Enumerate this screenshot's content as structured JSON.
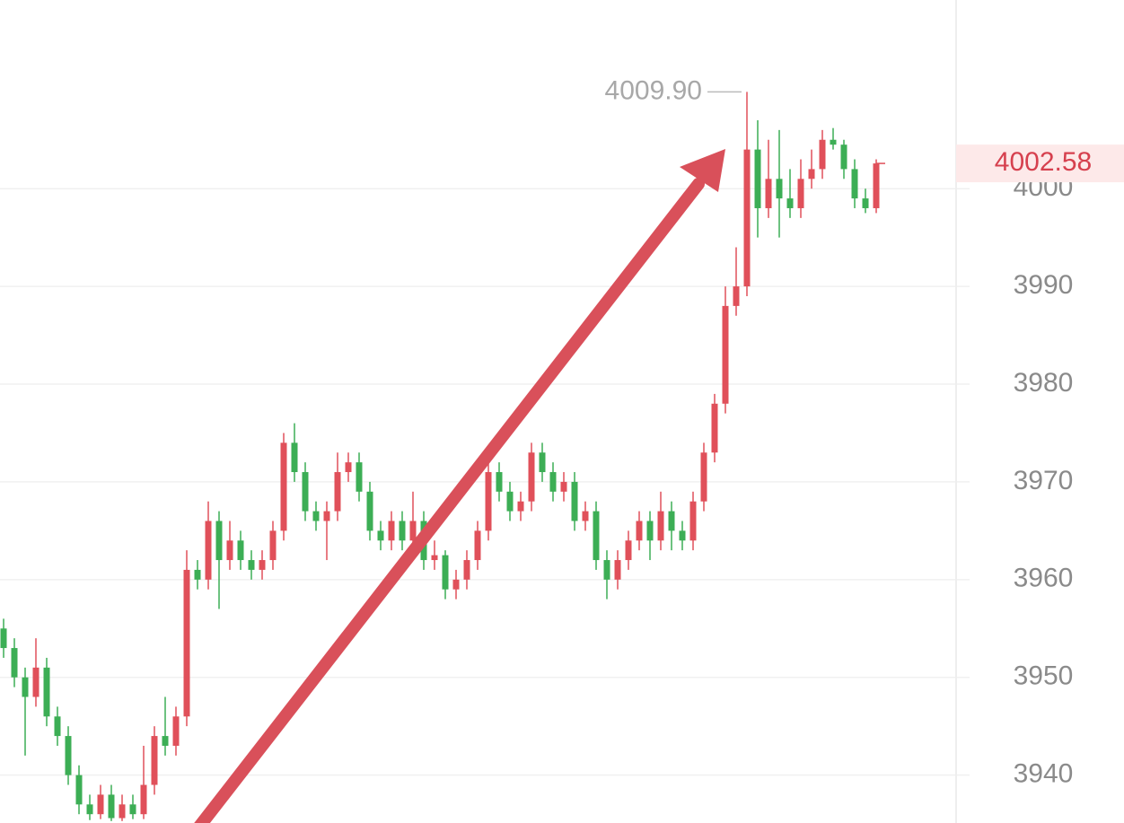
{
  "chart_data": {
    "type": "candlestick",
    "up_color": "#e0505a",
    "down_color": "#3cae55",
    "ylim": [
      3935.1,
      4019.3
    ],
    "yticks": [
      3940,
      3950,
      3960,
      3970,
      3980,
      3990,
      4000
    ],
    "grid": true,
    "open": [
      3955,
      3953,
      3950,
      3948,
      3951,
      3946,
      3944,
      3940,
      3937,
      3936,
      3938,
      3935.6,
      3937,
      3936,
      3939,
      3944,
      3943,
      3946,
      3961,
      3960,
      3966,
      3962,
      3964,
      3962,
      3961,
      3962,
      3965,
      3974,
      3971,
      3967,
      3966,
      3967,
      3971,
      3972,
      3969,
      3965,
      3964,
      3966,
      3964,
      3966,
      3962,
      3962.5,
      3959,
      3960,
      3962,
      3965,
      3971,
      3969,
      3967,
      3968,
      3973,
      3971,
      3969,
      3970,
      3966,
      3967,
      3962,
      3960,
      3962,
      3964,
      3966,
      3964,
      3967,
      3965,
      3964,
      3968,
      3973,
      3978,
      3988,
      3990,
      4004,
      3998,
      4001,
      3999,
      3998,
      4001,
      4002,
      4005,
      4004.5,
      4002,
      3999,
      3998
    ],
    "high": [
      3956,
      3954,
      3951,
      3954,
      3952,
      3947,
      3945,
      3941,
      3938,
      3939,
      3939,
      3938,
      3938,
      3943,
      3945,
      3948,
      3947,
      3963,
      3962,
      3968,
      3967,
      3966,
      3965,
      3963,
      3963,
      3966,
      3975,
      3976,
      3972,
      3968,
      3968,
      3973,
      3973,
      3973,
      3970,
      3966,
      3967,
      3967,
      3969,
      3967,
      3964,
      3963,
      3961,
      3963,
      3966,
      3973,
      3972,
      3970,
      3969,
      3974,
      3974,
      3972,
      3971,
      3971,
      3968,
      3968,
      3963,
      3963,
      3965,
      3967,
      3967,
      3969,
      3968,
      3966,
      3969,
      3974,
      3979,
      3990,
      3994,
      4009.9,
      4007,
      4005,
      4006,
      4002,
      4003,
      4004,
      4006,
      4006.2,
      4005,
      4003,
      4000,
      4003
    ],
    "low": [
      3952,
      3949,
      3942,
      3947,
      3945,
      3943,
      3939,
      3936,
      3935.4,
      3935.5,
      3935.3,
      3935.3,
      3935.5,
      3935.5,
      3938,
      3942,
      3942,
      3945,
      3959,
      3959,
      3957,
      3961,
      3961,
      3960,
      3960,
      3961,
      3964,
      3970,
      3966,
      3965,
      3962,
      3966,
      3970,
      3968,
      3964,
      3963,
      3963,
      3963,
      3963,
      3961,
      3961,
      3958,
      3958,
      3959,
      3961,
      3964,
      3968,
      3966,
      3966,
      3967,
      3970,
      3968,
      3968,
      3965,
      3965,
      3961,
      3958,
      3959,
      3961,
      3963,
      3962,
      3963,
      3963,
      3963,
      3963,
      3967,
      3972,
      3977,
      3987,
      3989,
      3995,
      3997,
      3995,
      3997,
      3997,
      4000,
      4001,
      4004,
      4001,
      3998,
      3997.5,
      3997.5
    ],
    "close": [
      3953,
      3950,
      3948,
      3951,
      3946,
      3944,
      3940,
      3937,
      3936,
      3938,
      3935.6,
      3937,
      3936,
      3939,
      3944,
      3943,
      3946,
      3961,
      3960,
      3966,
      3962,
      3964,
      3962,
      3961,
      3962,
      3965,
      3974,
      3971,
      3967,
      3966,
      3967,
      3971,
      3972,
      3969,
      3965,
      3964,
      3966,
      3964,
      3966,
      3962,
      3962.5,
      3959,
      3960,
      3962,
      3965,
      3971,
      3969,
      3967,
      3968,
      3973,
      3971,
      3969,
      3970,
      3966,
      3967,
      3962,
      3960,
      3962,
      3964,
      3966,
      3964,
      3967,
      3965,
      3964,
      3968,
      3973,
      3978,
      3988,
      3990,
      4004,
      3998,
      4001,
      3999,
      3998,
      4001,
      4002,
      4005,
      4004.5,
      4002,
      3999,
      3998,
      4002.58
    ],
    "max_label": {
      "value": 4009.9,
      "label": "4009.90"
    },
    "last_price_label": {
      "value": 4002.58,
      "label": "4002.58"
    }
  }
}
